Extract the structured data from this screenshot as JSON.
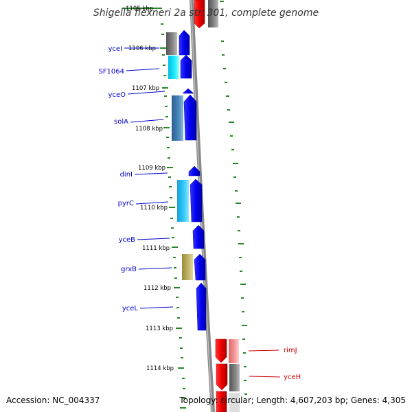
{
  "title": "Shigella flexneri 2a str. 301, complete genome",
  "footer": {
    "accession": "Accession: NC_004337",
    "topology": "Topology: circular; Length: 4,607,203 bp; Genes: 4,305"
  },
  "tick_labels": [
    "1105 kbp",
    "1106 kbp",
    "1107 kbp",
    "1108 kbp",
    "1109 kbp",
    "1110 kbp",
    "1111 kbp",
    "1112 kbp",
    "1113 kbp",
    "1114 kbp"
  ],
  "forward_gene_labels": [
    "yceI",
    "SF1064",
    "yceO",
    "solA",
    "dinI",
    "pyrC",
    "yceB",
    "grxB",
    "yceL"
  ],
  "reverse_gene_labels": [
    "rimJ",
    "yceH"
  ],
  "colors": {
    "forward_label": "#0000cc",
    "reverse_label": "#cc0000",
    "forward_cds": "#0000ee",
    "reverse_cds": "#ee0000",
    "backbone": "#888888",
    "ticks": "#228822"
  }
}
